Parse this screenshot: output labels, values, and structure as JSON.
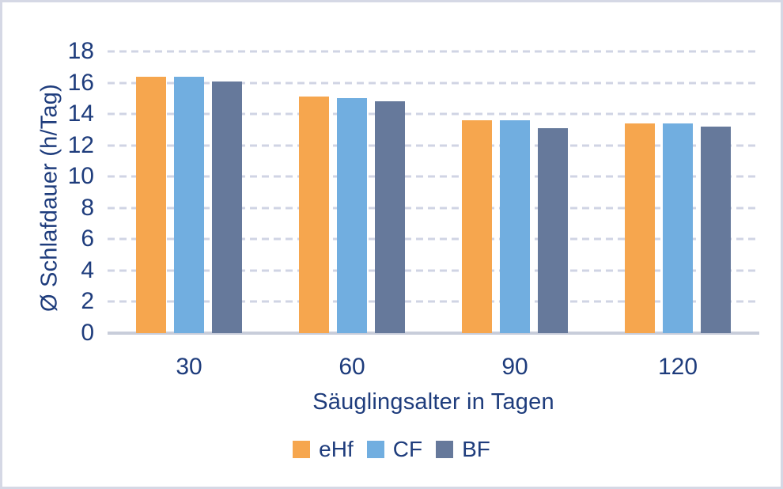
{
  "figure": {
    "background": "#ffffff",
    "border_color": "#d5d8e5"
  },
  "chart_data": {
    "type": "bar",
    "title": "",
    "xlabel": "Säuglingsalter in Tagen",
    "ylabel": "Ø Schlafdauer (h/Tag)",
    "categories": [
      "30",
      "60",
      "90",
      "120"
    ],
    "series": [
      {
        "name": "eHf",
        "color": "#f6a64e",
        "values": [
          16.4,
          15.1,
          13.6,
          13.4
        ]
      },
      {
        "name": "CF",
        "color": "#71aee0",
        "values": [
          16.4,
          15.0,
          13.6,
          13.4
        ]
      },
      {
        "name": "BF",
        "color": "#66799b",
        "values": [
          16.1,
          14.8,
          13.1,
          13.2
        ]
      }
    ],
    "ylim": [
      0,
      18
    ],
    "yticks": [
      0,
      2,
      4,
      6,
      8,
      10,
      12,
      14,
      16,
      18
    ],
    "grid": "horizontal-dashed",
    "gridline_color": "#d0d4e4",
    "axis_line_color": "#c8cdda",
    "tick_label_color": "#1e3c7c",
    "legend_position": "bottom"
  }
}
